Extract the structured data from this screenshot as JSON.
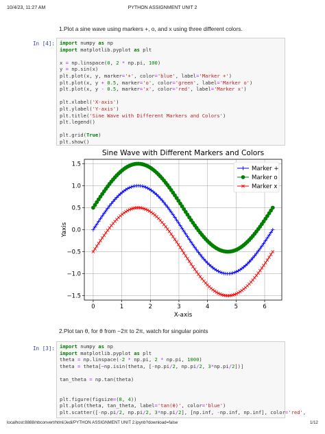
{
  "header": {
    "date": "10/4/23, 11:27 AM",
    "title": "PYTHON ASSIGNMENT UNIT 2"
  },
  "footer": {
    "url": "localhost:8888/nbconvert/html/Jedi/PYTHON ASSIGNMENT UNIT 2.ipynb?download=false",
    "page": "1/12"
  },
  "q1": {
    "text": "1.Plot a sine wave using markers +, o, and x using three different colors.",
    "prompt": "In [4]:",
    "code": [
      "import numpy as np",
      "import matplotlib.pyplot as plt",
      "",
      "x = np.linspace(0, 2 * np.pi, 100)",
      "y = np.sin(x)",
      "plt.plot(x, y, marker='+', color='blue', label='Marker +')",
      "plt.plot(x, y + 0.5, marker='o', color='green', label='Marker o')",
      "plt.plot(x, y - 0.5, marker='x', color='red', label='Marker x')",
      "",
      "plt.xlabel('X-axis')",
      "plt.ylabel('Y-axis')",
      "plt.title('Sine Wave with Different Markers and Colors')",
      "plt.legend()",
      "",
      "plt.grid(True)",
      "plt.show()"
    ]
  },
  "q2": {
    "text": "2.Plot tan θ, for θ from −2π to 2π, watch for singular points",
    "prompt": "In [3]:",
    "code": [
      "import numpy as np",
      "import matplotlib.pyplot as plt",
      "theta = np.linspace(-2 * np.pi, 2 * np.pi, 1000)",
      "theta = theta[~np.isin(theta, [-np.pi/2, np.pi/2, 3*np.pi/2])]",
      "",
      "tan_theta = np.tan(theta)",
      "",
      "",
      "plt.figure(figsize=(8, 4))",
      "plt.plot(theta, tan_theta, label='tan(θ)', color='blue')",
      "plt.scatter([-np.pi/2, np.pi/2, 3*np.pi/2], [np.inf, -np.inf, np.inf], color='red',"
    ]
  },
  "chart_data": {
    "type": "line",
    "title": "Sine Wave with Different Markers and Colors",
    "xlabel": "X-axis",
    "ylabel": "Yaxis",
    "xlim": [
      -0.31,
      6.6
    ],
    "ylim": [
      -1.6,
      1.6
    ],
    "xticks": [
      "0",
      "1",
      "2",
      "3",
      "4",
      "5",
      "6"
    ],
    "yticks": [
      "1.5",
      "1.0",
      "0.5",
      "0.0",
      "−0.5",
      "−1.0",
      "−1.5"
    ],
    "grid": true,
    "legend_position": "top-right",
    "x_range": [
      0,
      6.283185
    ],
    "num_points": 100,
    "function": "sin(x) + offset",
    "series": [
      {
        "name": "Marker +",
        "offset": 0.0,
        "marker": "+",
        "color": "#0000ff"
      },
      {
        "name": "Marker o",
        "offset": 0.5,
        "marker": "o",
        "color": "#008000"
      },
      {
        "name": "Marker x",
        "offset": -0.5,
        "marker": "x",
        "color": "#ff0000"
      }
    ]
  }
}
